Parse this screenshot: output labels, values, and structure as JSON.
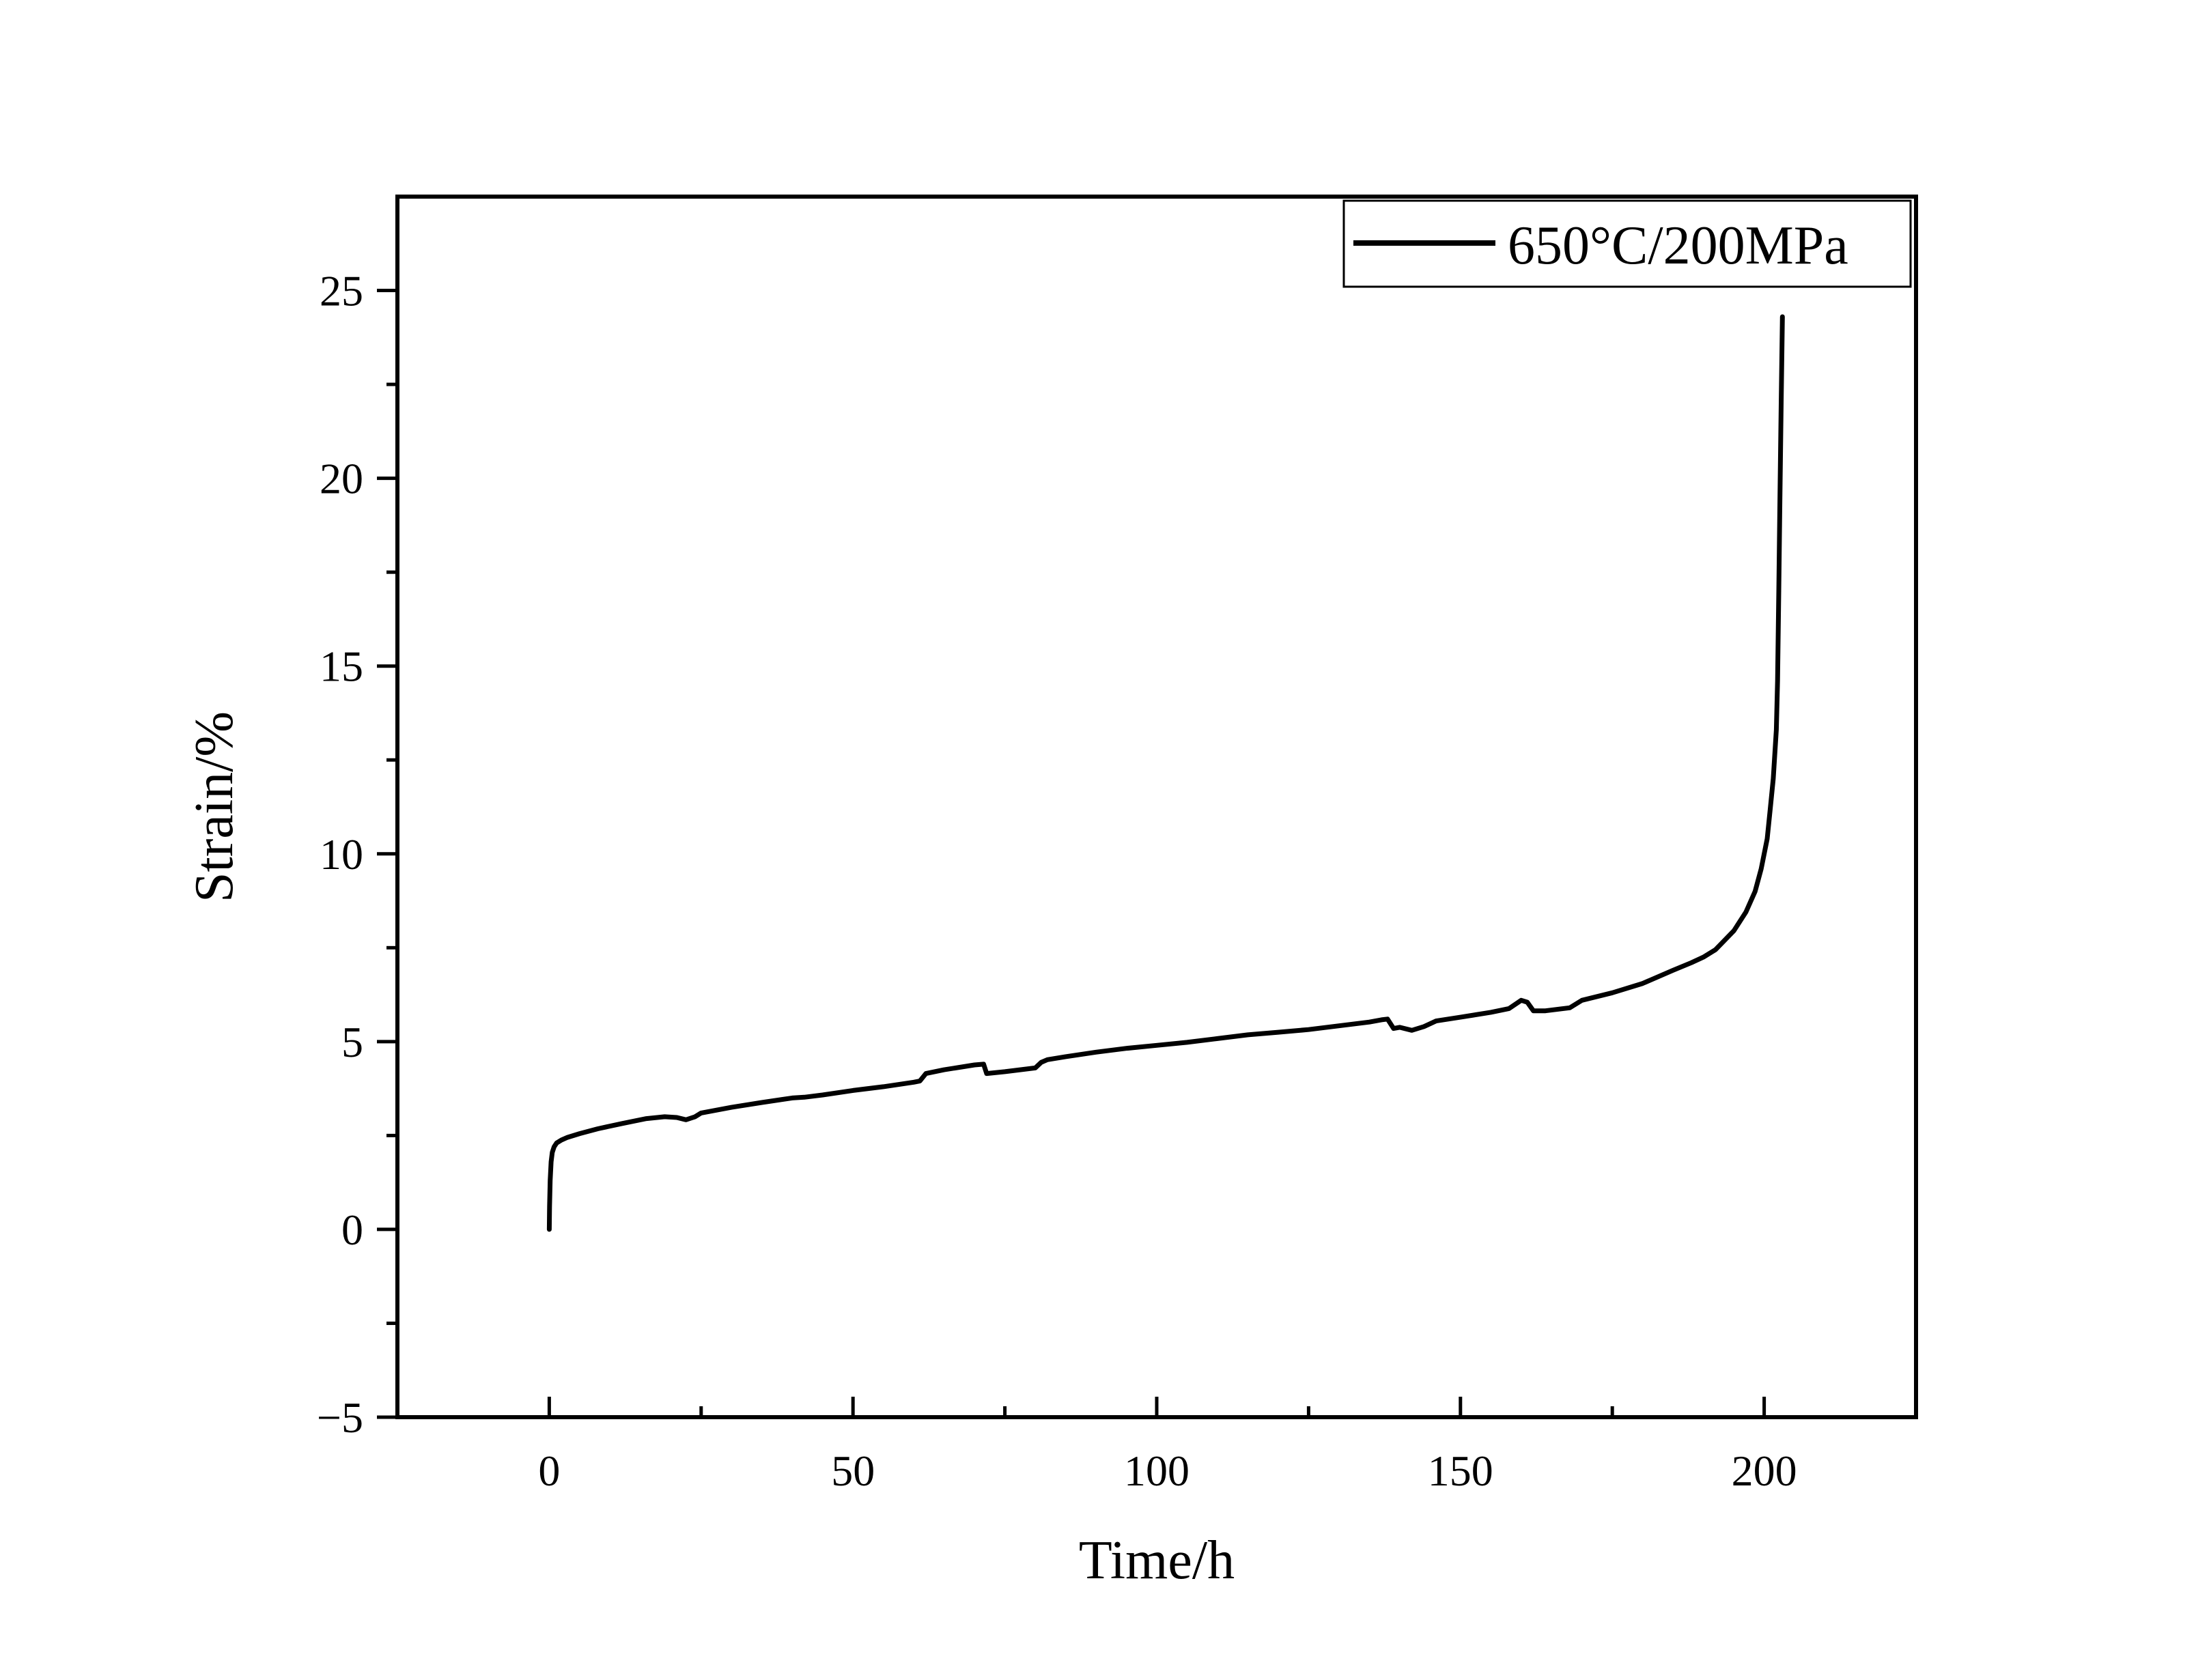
{
  "chart_data": {
    "type": "line",
    "title": "",
    "xlabel": "Time/h",
    "ylabel": "Strain/%",
    "xlim": [
      -25,
      225
    ],
    "ylim": [
      -5,
      27.5
    ],
    "xticks": [
      0,
      50,
      100,
      150,
      200
    ],
    "xtick_labels": [
      "0",
      "50",
      "100",
      "150",
      "200"
    ],
    "xminor": [
      -25,
      25,
      75,
      125,
      175,
      225
    ],
    "yticks": [
      -5,
      0,
      5,
      10,
      15,
      20,
      25
    ],
    "ytick_labels": [
      "−5",
      "0",
      "5",
      "10",
      "15",
      "20",
      "25"
    ],
    "yminor": [
      -2.5,
      2.5,
      7.5,
      12.5,
      17.5,
      22.5
    ],
    "grid": false,
    "legend": {
      "position": "top-right"
    },
    "line_color": "#000000",
    "series": [
      {
        "name": "650°C/200MPa",
        "x": [
          0,
          0.05,
          0.15,
          0.3,
          0.5,
          0.8,
          1.2,
          2,
          3,
          5,
          8,
          12,
          16,
          19,
          21,
          22.5,
          24,
          25,
          30,
          35,
          40,
          42,
          45,
          50,
          55,
          60,
          61,
          62,
          65,
          70,
          71.5,
          72,
          75,
          80,
          81,
          82,
          85,
          90,
          95,
          100,
          105,
          110,
          115,
          120,
          125,
          130,
          135,
          137,
          138,
          139,
          140,
          142,
          144,
          146,
          150,
          155,
          158,
          160,
          161,
          162,
          164,
          168,
          170,
          175,
          180,
          185,
          188,
          190,
          192,
          195,
          197,
          198.5,
          199.5,
          200.5,
          201,
          201.5,
          202,
          202.2,
          202.4,
          202.6,
          202.8,
          203
        ],
        "y": [
          0,
          0.6,
          1.3,
          1.8,
          2.05,
          2.2,
          2.3,
          2.38,
          2.45,
          2.55,
          2.68,
          2.82,
          2.95,
          3.0,
          2.98,
          2.92,
          3.0,
          3.1,
          3.25,
          3.38,
          3.5,
          3.52,
          3.58,
          3.7,
          3.8,
          3.92,
          3.95,
          4.15,
          4.25,
          4.38,
          4.4,
          4.15,
          4.2,
          4.3,
          4.45,
          4.52,
          4.6,
          4.72,
          4.82,
          4.9,
          4.98,
          5.08,
          5.18,
          5.25,
          5.32,
          5.42,
          5.52,
          5.58,
          5.6,
          5.35,
          5.38,
          5.3,
          5.4,
          5.55,
          5.65,
          5.78,
          5.88,
          6.1,
          6.05,
          5.82,
          5.82,
          5.9,
          6.1,
          6.3,
          6.55,
          6.9,
          7.1,
          7.25,
          7.45,
          7.95,
          8.45,
          9.0,
          9.6,
          10.4,
          11.2,
          12.0,
          13.3,
          14.6,
          17.0,
          19.5,
          22.0,
          24.3
        ]
      }
    ]
  }
}
